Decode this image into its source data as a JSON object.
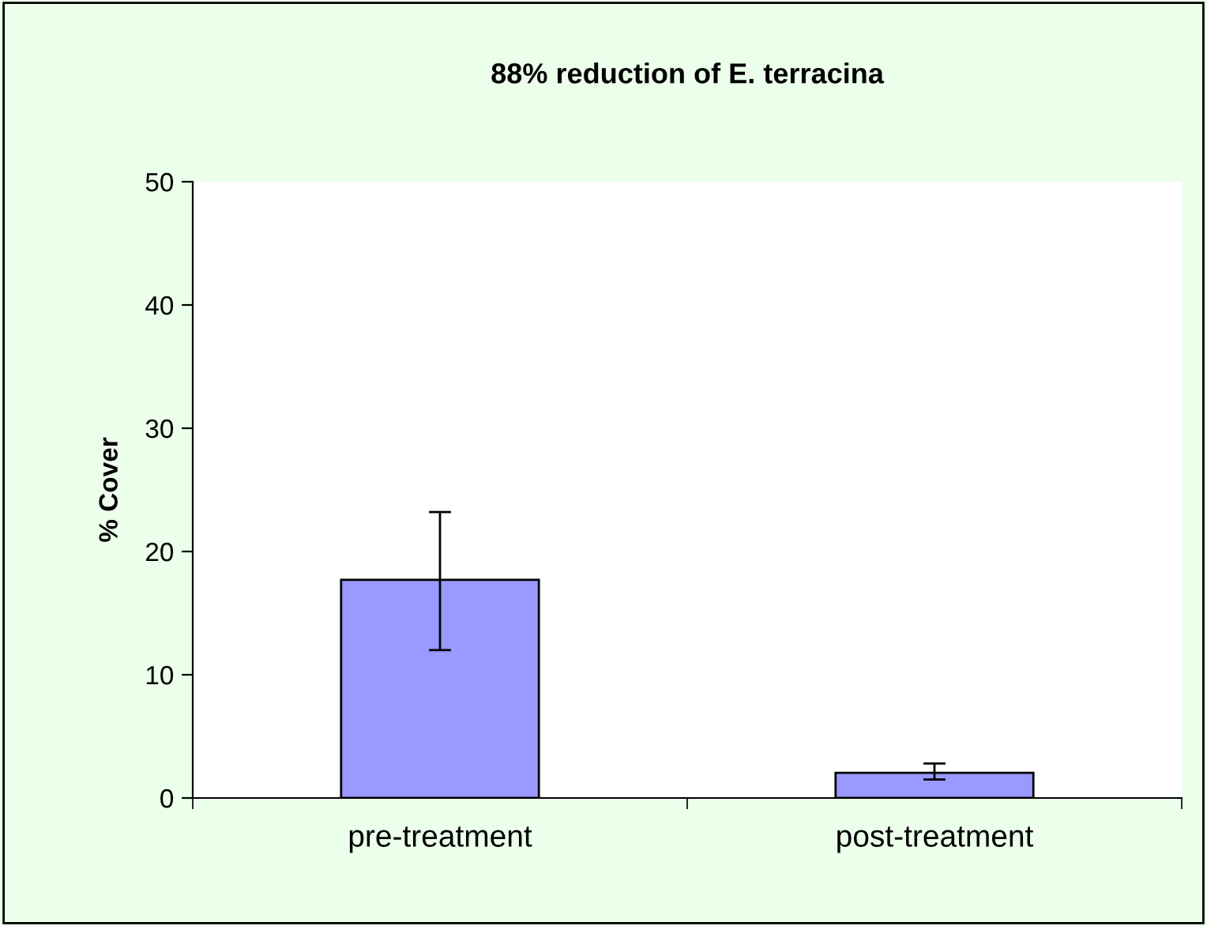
{
  "chart_data": {
    "type": "bar",
    "title": "88% reduction of E. terracina",
    "ylabel": "% Cover",
    "categories": [
      "pre-treatment",
      "post-treatment"
    ],
    "values": [
      17.7,
      2.05
    ],
    "errors": [
      [
        12.0,
        23.2
      ],
      [
        1.5,
        2.8
      ]
    ],
    "color": "#9999ff",
    "ylim": [
      0,
      50
    ],
    "yticks": [
      0,
      10,
      20,
      30,
      40,
      50
    ],
    "grid": false,
    "legend": false
  }
}
